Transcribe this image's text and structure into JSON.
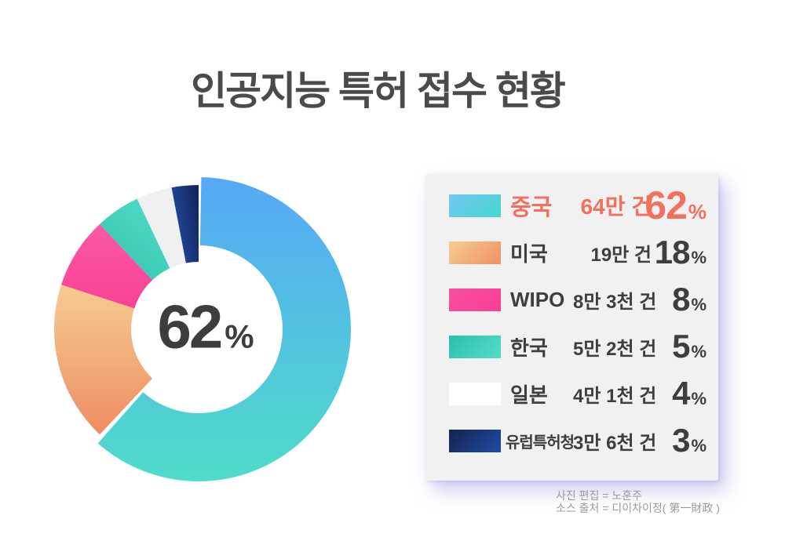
{
  "title": "인공지능 특허 접수 현황",
  "donut_center": {
    "value": "62",
    "unit": "%"
  },
  "credits": {
    "line1": "사진 편집 = 노훈주",
    "line2": "소스 출처 = 디이차이정( 第一財政 )"
  },
  "colors": {
    "background": "#ffffff",
    "title_text": "#4b4b4b",
    "normal_text": "#3e3e40",
    "highlight_text": "#f3705f",
    "panel_bg": "#f1f1f2",
    "panel_shadow": "#7d7dd7",
    "credit_text": "#9b9b9b"
  },
  "chart_data": {
    "type": "pie",
    "donut": true,
    "title": "인공지능 특허 접수 현황",
    "start_angle_deg": -90,
    "direction": "clockwise",
    "center_label": "62%",
    "percent_unit": "%",
    "legend_position": "right",
    "items": [
      {
        "key": "china",
        "label": "중국",
        "count_label": "64만 건",
        "percent": 62,
        "highlighted": true,
        "swatch": [
          "#74c6f2",
          "#46d7ce"
        ],
        "slice": [
          "#56a8f6",
          "#4fdcc9"
        ]
      },
      {
        "key": "usa",
        "label": "미국",
        "count_label": "19만 건",
        "percent": 18,
        "highlighted": false,
        "swatch": [
          "#f6cd8f",
          "#ef9164"
        ],
        "slice": [
          "#f5cd92",
          "#ee8c62"
        ]
      },
      {
        "key": "wipo",
        "label": "WIPO",
        "count_label": "8만 3천 건",
        "percent": 8,
        "highlighted": false,
        "swatch": [
          "#f74fa0",
          "#fa3f95"
        ],
        "slice": [
          "#f85aa4",
          "#fa4094"
        ]
      },
      {
        "key": "korea",
        "label": "한국",
        "count_label": "5만 2천 건",
        "percent": 5,
        "highlighted": false,
        "swatch": [
          "#2abfab",
          "#55ddc9"
        ],
        "slice": [
          "#4fd9c5",
          "#2dbfaa"
        ]
      },
      {
        "key": "japan",
        "label": "일본",
        "count_label": "4만 1천 건",
        "percent": 4,
        "highlighted": false,
        "swatch": [
          "#ffffff",
          "#ffffff"
        ],
        "slice": [
          "#eef0f2",
          "#eef0f2"
        ]
      },
      {
        "key": "epo",
        "label": "유럽특허청",
        "count_label": "3만 6천 건",
        "percent": 3,
        "highlighted": false,
        "swatch": [
          "#17224f",
          "#1d4da6"
        ],
        "slice": [
          "#2150a4",
          "#12215a"
        ]
      }
    ]
  }
}
